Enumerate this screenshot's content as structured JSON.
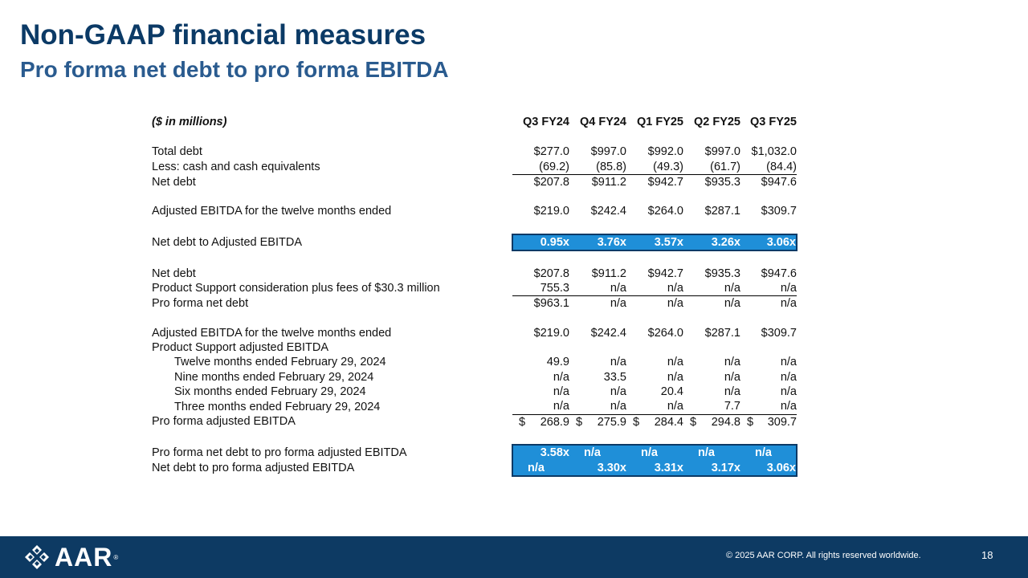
{
  "slide": {
    "title": "Non-GAAP financial measures",
    "subtitle": "Pro forma net debt to pro forma EBITDA"
  },
  "table": {
    "unit_label": "($ in millions)",
    "columns": [
      "Q3 FY24",
      "Q4 FY24",
      "Q1 FY25",
      "Q2 FY25",
      "Q3 FY25"
    ],
    "rows": {
      "total_debt": {
        "label": "Total debt",
        "values": [
          "$277.0",
          "$997.0",
          "$992.0",
          "$997.0",
          "$1,032.0"
        ]
      },
      "cash": {
        "label": "Less: cash and cash equivalents",
        "values": [
          "(69.2)",
          "(85.8)",
          "(49.3)",
          "(61.7)",
          "(84.4)"
        ]
      },
      "net_debt": {
        "label": "Net debt",
        "values": [
          "$207.8",
          "$911.2",
          "$942.7",
          "$935.3",
          "$947.6"
        ]
      },
      "adj_ebitda": {
        "label": "Adjusted EBITDA for the twelve months ended",
        "values": [
          "$219.0",
          "$242.4",
          "$264.0",
          "$287.1",
          "$309.7"
        ]
      },
      "net_debt_ratio": {
        "label": "Net debt to Adjusted EBITDA",
        "values": [
          "0.95x",
          "3.76x",
          "3.57x",
          "3.26x",
          "3.06x"
        ]
      },
      "net_debt_2": {
        "label": "Net debt",
        "values": [
          "$207.8",
          "$911.2",
          "$942.7",
          "$935.3",
          "$947.6"
        ]
      },
      "product_support": {
        "label": "Product Support consideration plus fees of $30.3 million",
        "values": [
          "755.3",
          "n/a",
          "n/a",
          "n/a",
          "n/a"
        ]
      },
      "pf_net_debt": {
        "label": "Pro forma net debt",
        "values": [
          "$963.1",
          "n/a",
          "n/a",
          "n/a",
          "n/a"
        ]
      },
      "adj_ebitda_2": {
        "label": "Adjusted EBITDA for the twelve months ended",
        "values": [
          "$219.0",
          "$242.4",
          "$264.0",
          "$287.1",
          "$309.7"
        ]
      },
      "ps_adj_ebitda": {
        "label": "Product Support adjusted EBITDA"
      },
      "twelve_months": {
        "label": "Twelve months ended February 29, 2024",
        "values": [
          "49.9",
          "n/a",
          "n/a",
          "n/a",
          "n/a"
        ]
      },
      "nine_months": {
        "label": "Nine months ended February 29, 2024",
        "values": [
          "n/a",
          "33.5",
          "n/a",
          "n/a",
          "n/a"
        ]
      },
      "six_months": {
        "label": "Six months ended February 29, 2024",
        "values": [
          "n/a",
          "n/a",
          "20.4",
          "n/a",
          "n/a"
        ]
      },
      "three_months": {
        "label": "Three months ended February 29, 2024",
        "values": [
          "n/a",
          "n/a",
          "n/a",
          "7.7",
          "n/a"
        ]
      },
      "pf_adj_ebitda": {
        "label": "Pro forma adjusted EBITDA",
        "currency": "$",
        "values": [
          "268.9",
          "275.9",
          "284.4",
          "294.8",
          "309.7"
        ]
      },
      "pf_ratio": {
        "label": "Pro forma net debt to pro forma adjusted EBITDA",
        "values": [
          "3.58x",
          "n/a",
          "n/a",
          "n/a",
          "n/a"
        ]
      },
      "nd_pf_ratio": {
        "label": "Net debt to pro forma adjusted EBITDA",
        "values": [
          "n/a",
          "3.30x",
          "3.31x",
          "3.17x",
          "3.06x"
        ]
      }
    }
  },
  "footer": {
    "logo_text": "AAR",
    "logo_reg": "®",
    "copyright": "© 2025 AAR CORP. All rights reserved worldwide.",
    "page_number": "18",
    "background_color": "#0d3a63"
  },
  "colors": {
    "title": "#0b3a66",
    "subtitle": "#2a5b8f",
    "highlight_row": "#1f8fd8"
  }
}
